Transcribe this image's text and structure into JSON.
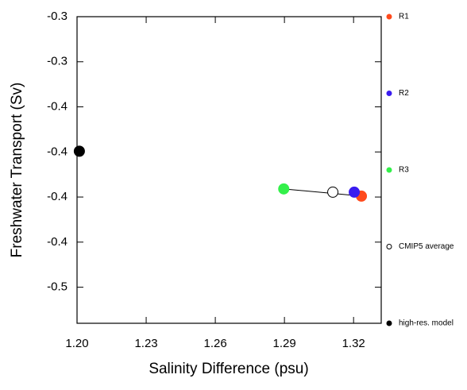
{
  "chart_data": {
    "type": "scatter",
    "x_label": "Salinity Difference (psu)",
    "y_label": "Freshwater Transport (Sv)",
    "xlim": [
      1.2,
      1.332
    ],
    "xticks": [
      {
        "value": 1.2,
        "label": "1.20"
      },
      1.23,
      1.26,
      1.29,
      1.32
    ],
    "ylim": [
      -0.47,
      -0.3
    ],
    "yticks": [
      {
        "value": -0.3,
        "label": "-0.3"
      },
      {
        "value": -0.325,
        "label": "-0.3"
      },
      {
        "value": -0.35,
        "label": "-0.4"
      },
      {
        "value": -0.375,
        "label": "-0.4"
      },
      {
        "value": -0.4,
        "label": "-0.4"
      },
      {
        "value": -0.425,
        "label": "-0.4"
      },
      {
        "value": -0.45,
        "label": "-0.5"
      }
    ],
    "connect": [
      "R3",
      "R1"
    ],
    "series": [
      {
        "name": "R1",
        "color": "#ff4a1c",
        "filled": true,
        "x": [
          1.3234
        ],
        "values": [
          -0.3995
        ]
      },
      {
        "name": "R2",
        "color": "#3a1cf0",
        "filled": true,
        "x": [
          1.3203
        ],
        "values": [
          -0.3973
        ]
      },
      {
        "name": "R3",
        "color": "#33f04a",
        "filled": true,
        "x": [
          1.2897
        ],
        "values": [
          -0.3955
        ]
      },
      {
        "name": "CMIP5 average",
        "color": "#000000",
        "filled": false,
        "x": [
          1.311
        ],
        "values": [
          -0.3973
        ]
      },
      {
        "name": "high-res. model",
        "color": "#000000",
        "filled": true,
        "x": [
          1.201
        ],
        "values": [
          -0.3746
        ]
      }
    ]
  }
}
